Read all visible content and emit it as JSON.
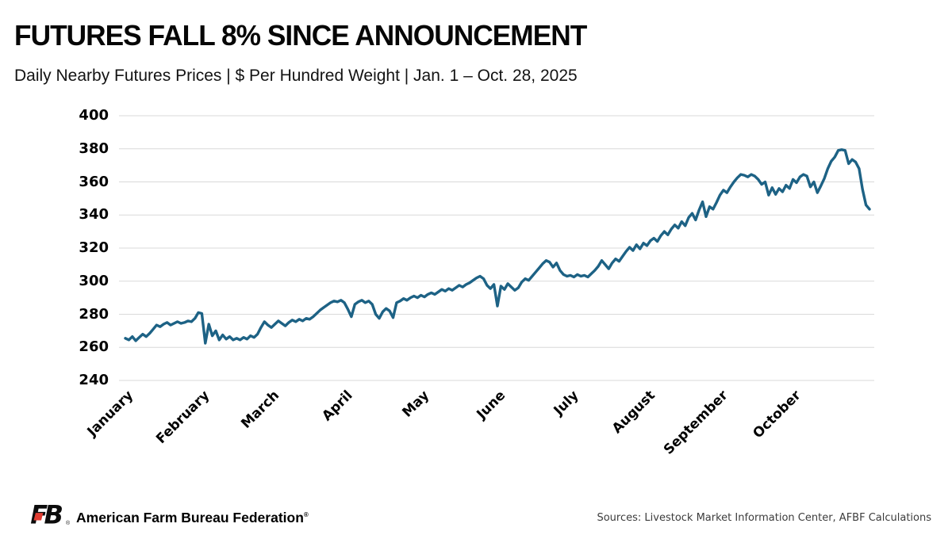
{
  "header": {
    "title": "FUTURES FALL 8% SINCE ANNOUNCEMENT",
    "subtitle": "Daily Nearby Futures Prices | $ Per Hundred Weight | Jan. 1 – Oct. 28, 2025"
  },
  "footer": {
    "logo_letters": "FB",
    "logo_mark": "®",
    "org_name": "American Farm Bureau Federation",
    "org_mark": "®",
    "sources": "Sources: Livestock Market Information Center, AFBF Calculations"
  },
  "colors": {
    "line": "#1d6285",
    "grid": "#d9d9d9",
    "brand_red": "#e03c31",
    "text": "#000000",
    "source_text": "#3c3c3c"
  },
  "chart_data": {
    "type": "line",
    "title": "FUTURES FALL 8% SINCE ANNOUNCEMENT",
    "subtitle": "Daily Nearby Futures Prices | $ Per Hundred Weight | Jan. 1 – Oct. 28, 2025",
    "xlabel": "",
    "ylabel": "",
    "ylim": [
      240,
      400
    ],
    "y_ticks": [
      240,
      260,
      280,
      300,
      320,
      340,
      360,
      380,
      400
    ],
    "grid": "horizontal-only",
    "legend": "none",
    "x_axis": {
      "months": [
        "January",
        "February",
        "March",
        "April",
        "May",
        "June",
        "July",
        "August",
        "September",
        "October"
      ],
      "month_start_index": [
        0,
        22,
        42,
        63,
        85,
        107,
        128,
        150,
        171,
        192
      ]
    },
    "values": [
      265.5,
      264.5,
      266.5,
      264,
      266,
      268,
      266.5,
      268.5,
      271,
      273.5,
      272.5,
      274,
      275,
      273.5,
      274.5,
      275.5,
      274.5,
      275,
      276,
      275.5,
      277.5,
      281,
      280.5,
      262.5,
      274,
      267,
      270,
      264.5,
      267.5,
      265,
      266.5,
      264.5,
      265.5,
      264.5,
      266,
      265,
      267,
      266,
      268,
      272,
      275.5,
      273.5,
      272,
      274,
      276,
      274.5,
      273,
      275,
      276.5,
      275.5,
      277,
      276,
      277.5,
      277,
      278.5,
      280.5,
      282.5,
      284,
      285.5,
      287,
      288,
      287.5,
      288.5,
      287,
      283,
      278.5,
      286,
      287.5,
      288.5,
      287,
      288,
      286,
      280,
      277.5,
      281.5,
      283.5,
      282,
      278,
      287,
      288,
      289.5,
      288.5,
      290,
      291,
      290,
      291.5,
      290.5,
      292,
      293,
      292,
      293.5,
      295,
      294,
      295.5,
      294.5,
      296,
      297.5,
      296.5,
      298,
      299,
      300.5,
      302,
      303,
      301.5,
      297.5,
      295.5,
      298,
      285,
      297,
      295,
      298.5,
      296.5,
      294.5,
      296,
      299.5,
      301.5,
      300.5,
      303,
      305.5,
      308,
      310.5,
      312.5,
      311.5,
      308.5,
      311,
      306.5,
      304,
      303,
      303.5,
      302.5,
      304,
      303,
      303.5,
      302.5,
      304.5,
      306.5,
      309,
      312.5,
      310,
      307.5,
      311,
      313.5,
      312,
      315,
      318,
      320.5,
      318.5,
      322,
      319.5,
      323,
      321.5,
      324.5,
      326,
      324,
      327.5,
      330,
      328,
      331.5,
      334,
      332,
      336,
      333.5,
      338.5,
      341,
      337,
      343,
      348,
      339,
      345,
      343.5,
      347.5,
      352,
      355,
      353.5,
      357,
      360,
      362.5,
      364.5,
      364,
      363,
      364.5,
      363.5,
      361.5,
      358.5,
      360,
      352,
      356.5,
      352.5,
      356,
      354,
      358,
      356,
      361.5,
      359.5,
      363,
      364.5,
      363.5,
      357,
      360,
      353.5,
      357.5,
      362,
      368,
      372.5,
      375,
      379,
      379.5,
      379,
      371,
      373.5,
      372,
      368,
      355.5,
      346,
      343.5
    ]
  }
}
